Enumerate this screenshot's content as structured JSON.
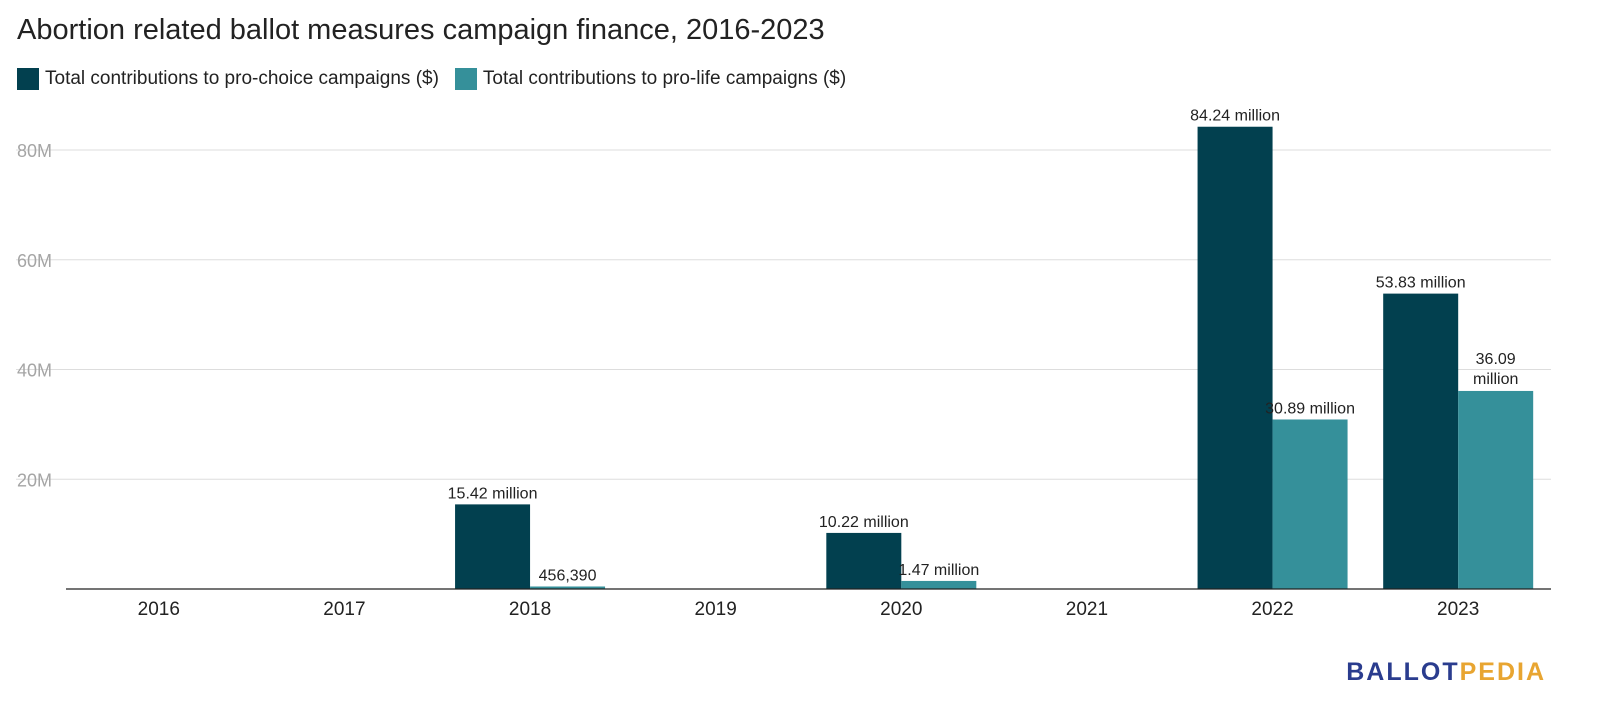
{
  "chart_data": {
    "type": "bar",
    "title": "Abortion related ballot measures campaign finance, 2016-2023",
    "categories": [
      "2016",
      "2017",
      "2018",
      "2019",
      "2020",
      "2021",
      "2022",
      "2023"
    ],
    "series": [
      {
        "name": "Total contributions to pro-choice campaigns ($)",
        "color": "#02404f",
        "values": [
          0,
          0,
          15420000,
          0,
          10220000,
          0,
          84240000,
          53830000
        ],
        "labels": [
          "",
          "",
          "15.42 million",
          "",
          "10.22 million",
          "",
          "84.24 million",
          "53.83 million"
        ]
      },
      {
        "name": "Total contributions to pro-life campaigns ($)",
        "color": "#35909a",
        "values": [
          0,
          0,
          456390,
          0,
          1470000,
          0,
          30890000,
          36090000
        ],
        "labels": [
          "",
          "",
          "456,390",
          "",
          "1.47 million",
          "",
          "30.89 million",
          "36.09 million"
        ]
      }
    ],
    "yticks": [
      "20M",
      "40M",
      "60M",
      "80M"
    ],
    "ytick_values": [
      20000000,
      40000000,
      60000000,
      80000000
    ],
    "ylim": [
      0,
      88000000
    ],
    "grid": true,
    "legend": "top-left"
  },
  "logo": {
    "part1": "BALLOT",
    "part2": "PEDIA"
  }
}
